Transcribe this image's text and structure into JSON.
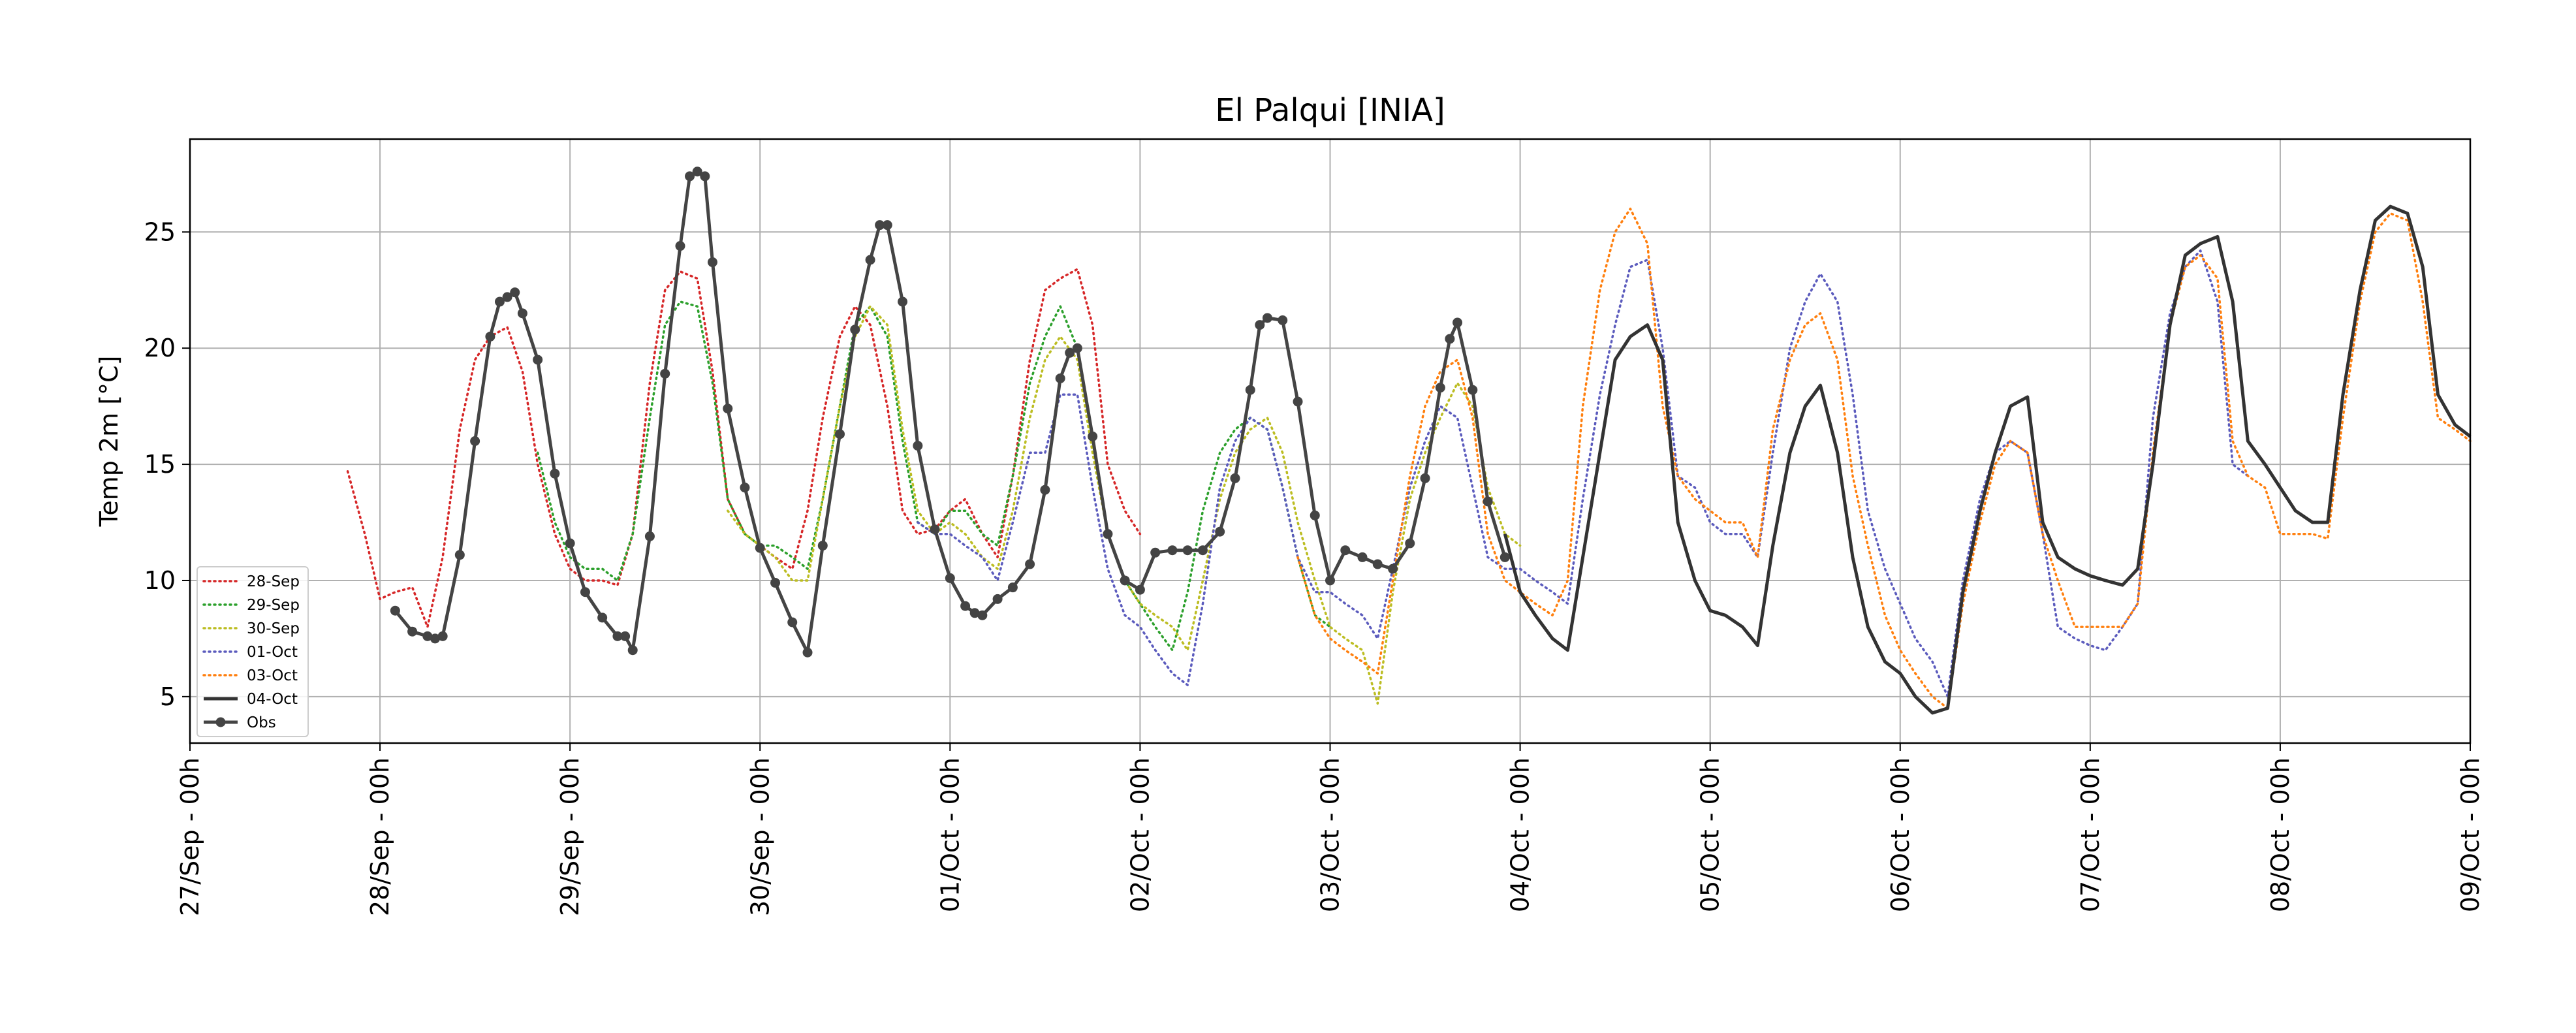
{
  "chart_data": {
    "type": "line",
    "title": "El Palqui [INIA]",
    "xlabel": "",
    "ylabel": "Temp 2m [°C]",
    "xlim": [
      0,
      12
    ],
    "ylim": [
      3,
      29
    ],
    "grid": true,
    "legend_placement": "lower-left",
    "x_unit": "days from 27/Sep 00h",
    "x_tick_labels": [
      "27/Sep - 00h",
      "28/Sep - 00h",
      "29/Sep - 00h",
      "30/Sep - 00h",
      "01/Oct - 00h",
      "02/Oct - 00h",
      "03/Oct - 00h",
      "04/Oct - 00h",
      "05/Oct - 00h",
      "06/Oct - 00h",
      "07/Oct - 00h",
      "08/Oct - 00h",
      "09/Oct - 00h"
    ],
    "y_ticks": [
      5,
      10,
      15,
      20,
      25
    ],
    "series": [
      {
        "name": "28-Sep",
        "style": "dotted",
        "color": "#d62728",
        "x": [
          0.83,
          0.92,
          1.0,
          1.08,
          1.17,
          1.25,
          1.33,
          1.42,
          1.5,
          1.58,
          1.67,
          1.75,
          1.83,
          1.92,
          2.0,
          2.08,
          2.17,
          2.25,
          2.33,
          2.42,
          2.5,
          2.58,
          2.67,
          2.75,
          2.83,
          2.92,
          3.0,
          3.08,
          3.17,
          3.25,
          3.33,
          3.42,
          3.5,
          3.58,
          3.67,
          3.75,
          3.83,
          3.92,
          4.0,
          4.08,
          4.17,
          4.25,
          4.33,
          4.42,
          4.5,
          4.58,
          4.67,
          4.75,
          4.83,
          4.92,
          5.0
        ],
        "y": [
          14.7,
          12.0,
          9.2,
          9.5,
          9.7,
          8.0,
          11.0,
          16.5,
          19.5,
          20.5,
          20.9,
          19.0,
          15.0,
          12.0,
          10.5,
          10.0,
          10.0,
          9.8,
          12.0,
          18.5,
          22.5,
          23.3,
          23.0,
          19.0,
          13.5,
          12.0,
          11.5,
          11.0,
          10.5,
          13.0,
          17.0,
          20.5,
          21.8,
          21.0,
          17.5,
          13.0,
          12.0,
          12.2,
          13.0,
          13.5,
          12.0,
          11.0,
          14.5,
          19.5,
          22.5,
          23.0,
          23.4,
          21.0,
          15.0,
          13.0,
          12.0
        ]
      },
      {
        "name": "29-Sep",
        "style": "dotted",
        "color": "#2ca02c",
        "x": [
          1.83,
          1.92,
          2.0,
          2.08,
          2.17,
          2.25,
          2.33,
          2.42,
          2.5,
          2.58,
          2.67,
          2.75,
          2.83,
          2.92,
          3.0,
          3.08,
          3.17,
          3.25,
          3.33,
          3.42,
          3.5,
          3.58,
          3.67,
          3.75,
          3.83,
          3.92,
          4.0,
          4.08,
          4.17,
          4.25,
          4.33,
          4.42,
          4.5,
          4.58,
          4.67,
          4.75,
          4.83,
          4.92,
          5.0,
          5.08,
          5.17,
          5.25,
          5.33,
          5.42,
          5.5,
          5.58,
          5.67,
          5.75,
          5.83,
          5.92,
          6.0
        ],
        "y": [
          15.5,
          12.5,
          11.0,
          10.5,
          10.5,
          10.0,
          12.0,
          17.0,
          21.0,
          22.0,
          21.8,
          18.5,
          13.5,
          12.0,
          11.5,
          11.5,
          11.0,
          10.5,
          13.5,
          17.5,
          21.0,
          21.8,
          20.5,
          16.0,
          12.5,
          12.0,
          13.0,
          13.0,
          12.0,
          11.5,
          14.5,
          18.5,
          20.5,
          21.8,
          20.0,
          16.0,
          12.0,
          10.0,
          9.0,
          8.0,
          7.0,
          9.5,
          13.0,
          15.5,
          16.5,
          17.0,
          16.5,
          14.0,
          11.0,
          8.5,
          8.0
        ]
      },
      {
        "name": "30-Sep",
        "style": "dotted",
        "color": "#bcbd22",
        "x": [
          2.83,
          2.92,
          3.0,
          3.08,
          3.17,
          3.25,
          3.33,
          3.42,
          3.5,
          3.58,
          3.67,
          3.75,
          3.83,
          3.92,
          4.0,
          4.08,
          4.17,
          4.25,
          4.33,
          4.42,
          4.5,
          4.58,
          4.67,
          4.75,
          4.83,
          4.92,
          5.0,
          5.08,
          5.17,
          5.25,
          5.33,
          5.42,
          5.5,
          5.58,
          5.67,
          5.75,
          5.83,
          5.92,
          6.0,
          6.08,
          6.17,
          6.25,
          6.33,
          6.42,
          6.5,
          6.58,
          6.67,
          6.75,
          6.83,
          6.92,
          7.0
        ],
        "y": [
          13.0,
          12.0,
          11.5,
          11.0,
          10.0,
          10.0,
          13.5,
          17.5,
          20.5,
          21.8,
          21.0,
          16.5,
          13.0,
          12.0,
          12.5,
          12.0,
          11.0,
          10.5,
          13.0,
          17.0,
          19.5,
          20.5,
          19.5,
          15.5,
          12.0,
          10.0,
          9.0,
          8.5,
          8.0,
          7.0,
          10.0,
          13.5,
          15.5,
          16.5,
          17.0,
          15.5,
          12.5,
          10.0,
          8.0,
          7.5,
          7.0,
          4.7,
          9.5,
          13.5,
          15.5,
          17.0,
          18.5,
          17.5,
          14.0,
          12.0,
          11.5
        ]
      },
      {
        "name": "01-Oct",
        "style": "dotted",
        "color": "#5b5bbd",
        "x": [
          3.83,
          3.92,
          4.0,
          4.08,
          4.17,
          4.25,
          4.33,
          4.42,
          4.5,
          4.58,
          4.67,
          4.75,
          4.83,
          4.92,
          5.0,
          5.08,
          5.17,
          5.25,
          5.33,
          5.42,
          5.5,
          5.58,
          5.67,
          5.75,
          5.83,
          5.92,
          6.0,
          6.08,
          6.17,
          6.25,
          6.33,
          6.42,
          6.5,
          6.58,
          6.67,
          6.75,
          6.83,
          6.92,
          7.0,
          7.08,
          7.17,
          7.25,
          7.33,
          7.42,
          7.5,
          7.58,
          7.67,
          7.75,
          7.83,
          7.92,
          8.0,
          8.08,
          8.17,
          8.25,
          8.33,
          8.42,
          8.5,
          8.58,
          8.67,
          8.75,
          8.83,
          8.92,
          9.0,
          9.08,
          9.17,
          9.25,
          9.33,
          9.42,
          9.5,
          9.58,
          9.67,
          9.75,
          9.83,
          9.92,
          10.0,
          10.08,
          10.17,
          10.25,
          10.33,
          10.42,
          10.5,
          10.58,
          10.67,
          10.75,
          10.83
        ],
        "y": [
          12.5,
          12.0,
          12.0,
          11.5,
          11.0,
          10.0,
          12.5,
          15.5,
          15.5,
          18.0,
          18.0,
          14.0,
          10.5,
          8.5,
          8.0,
          7.0,
          6.0,
          5.5,
          9.0,
          14.0,
          16.0,
          17.0,
          16.5,
          14.0,
          11.0,
          9.5,
          9.5,
          9.0,
          8.5,
          7.5,
          10.5,
          14.0,
          16.0,
          17.5,
          17.0,
          14.0,
          11.0,
          10.5,
          10.5,
          10.0,
          9.5,
          9.0,
          13.5,
          18.0,
          21.0,
          23.5,
          23.8,
          20.0,
          14.5,
          14.0,
          12.5,
          12.0,
          12.0,
          11.0,
          15.5,
          20.0,
          22.0,
          23.2,
          22.0,
          18.0,
          13.0,
          10.5,
          9.0,
          7.5,
          6.5,
          5.0,
          10.0,
          13.5,
          15.5,
          16.0,
          15.5,
          12.0,
          8.0,
          7.5,
          7.2,
          7.0,
          8.0,
          9.0,
          17.0,
          21.5,
          23.5,
          24.2,
          22.0,
          15.0,
          14.5
        ]
      },
      {
        "name": "03-Oct",
        "style": "dotted",
        "color": "#ff7f0e",
        "x": [
          5.83,
          5.92,
          6.0,
          6.08,
          6.17,
          6.25,
          6.33,
          6.42,
          6.5,
          6.58,
          6.67,
          6.75,
          6.83,
          6.92,
          7.0,
          7.08,
          7.17,
          7.25,
          7.33,
          7.42,
          7.5,
          7.58,
          7.67,
          7.75,
          7.83,
          7.92,
          8.0,
          8.08,
          8.17,
          8.25,
          8.33,
          8.42,
          8.5,
          8.58,
          8.67,
          8.75,
          8.83,
          8.92,
          9.0,
          9.08,
          9.17,
          9.25,
          9.33,
          9.42,
          9.5,
          9.58,
          9.67,
          9.75,
          9.83,
          9.92,
          10.0,
          10.08,
          10.17,
          10.25,
          10.33,
          10.42,
          10.5,
          10.58,
          10.67,
          10.75,
          10.83,
          10.92,
          11.0,
          11.08,
          11.17,
          11.25,
          11.33,
          11.42,
          11.5,
          11.58,
          11.67,
          11.75,
          11.83,
          11.92,
          12.0
        ],
        "y": [
          11.0,
          8.5,
          7.5,
          7.0,
          6.5,
          6.0,
          10.0,
          14.5,
          17.5,
          19.0,
          19.5,
          17.0,
          12.0,
          10.0,
          9.5,
          9.0,
          8.5,
          10.0,
          17.5,
          22.5,
          25.0,
          26.0,
          24.5,
          17.5,
          14.5,
          13.5,
          13.0,
          12.5,
          12.5,
          11.0,
          16.5,
          19.5,
          21.0,
          21.5,
          19.5,
          14.5,
          11.5,
          8.5,
          7.0,
          6.0,
          5.0,
          4.5,
          9.0,
          12.5,
          15.0,
          16.0,
          15.5,
          12.0,
          10.0,
          8.0,
          8.0,
          8.0,
          8.0,
          9.0,
          15.5,
          21.0,
          23.5,
          24.0,
          23.0,
          16.0,
          14.5,
          14.0,
          12.0,
          12.0,
          12.0,
          11.8,
          17.0,
          22.0,
          25.0,
          25.8,
          25.5,
          22.0,
          17.0,
          16.5,
          16.0
        ]
      },
      {
        "name": "04-Oct",
        "style": "solid",
        "color": "#333333",
        "x": [
          6.92,
          7.0,
          7.08,
          7.17,
          7.25,
          7.33,
          7.42,
          7.5,
          7.58,
          7.67,
          7.75,
          7.83,
          7.92,
          8.0,
          8.08,
          8.17,
          8.25,
          8.33,
          8.42,
          8.5,
          8.58,
          8.67,
          8.75,
          8.83,
          8.92,
          9.0,
          9.08,
          9.17,
          9.25,
          9.33,
          9.42,
          9.5,
          9.58,
          9.67,
          9.75,
          9.83,
          9.92,
          10.0,
          10.08,
          10.17,
          10.25,
          10.33,
          10.42,
          10.5,
          10.58,
          10.67,
          10.75,
          10.83,
          10.92,
          11.0,
          11.08,
          11.17,
          11.25,
          11.33,
          11.42,
          11.5,
          11.58,
          11.67,
          11.75,
          11.83,
          11.92,
          12.0
        ],
        "y": [
          12.0,
          9.5,
          8.5,
          7.5,
          7.0,
          11.0,
          15.5,
          19.5,
          20.5,
          21.0,
          19.5,
          12.5,
          10.0,
          8.7,
          8.5,
          8.0,
          7.2,
          11.5,
          15.5,
          17.5,
          18.4,
          15.5,
          11.0,
          8.0,
          6.5,
          6.0,
          5.0,
          4.3,
          4.5,
          9.5,
          13.0,
          15.5,
          17.5,
          17.9,
          12.5,
          11.0,
          10.5,
          10.2,
          10.0,
          9.8,
          10.5,
          15.0,
          21.0,
          24.0,
          24.5,
          24.8,
          22.0,
          16.0,
          15.0,
          14.0,
          13.0,
          12.5,
          12.5,
          18.0,
          22.5,
          25.5,
          26.1,
          25.8,
          23.5,
          18.0,
          16.7,
          16.2
        ]
      },
      {
        "name": "Obs",
        "style": "marker",
        "color": "#444444",
        "x": [
          1.08,
          1.17,
          1.25,
          1.29,
          1.33,
          1.42,
          1.5,
          1.58,
          1.63,
          1.67,
          1.71,
          1.75,
          1.83,
          1.92,
          2.0,
          2.08,
          2.17,
          2.25,
          2.29,
          2.33,
          2.42,
          2.5,
          2.58,
          2.63,
          2.67,
          2.71,
          2.75,
          2.83,
          2.92,
          3.0,
          3.08,
          3.17,
          3.25,
          3.33,
          3.42,
          3.5,
          3.58,
          3.63,
          3.67,
          3.75,
          3.83,
          3.92,
          4.0,
          4.08,
          4.13,
          4.17,
          4.25,
          4.33,
          4.42,
          4.5,
          4.58,
          4.63,
          4.67,
          4.75,
          4.83,
          4.92,
          5.0,
          5.08,
          5.17,
          5.25,
          5.33,
          5.42,
          5.5,
          5.58,
          5.63,
          5.67,
          5.75,
          5.83,
          5.92,
          6.0,
          6.08,
          6.17,
          6.25,
          6.33,
          6.42,
          6.5,
          6.58,
          6.63,
          6.67,
          6.75,
          6.83,
          6.92
        ],
        "y": [
          8.7,
          7.8,
          7.6,
          7.5,
          7.6,
          11.1,
          16.0,
          20.5,
          22.0,
          22.2,
          22.4,
          21.5,
          19.5,
          14.6,
          11.6,
          9.5,
          8.4,
          7.6,
          7.6,
          7.0,
          11.9,
          18.9,
          24.4,
          27.4,
          27.6,
          27.4,
          23.7,
          17.4,
          14.0,
          11.4,
          9.9,
          8.2,
          6.9,
          11.5,
          16.3,
          20.8,
          23.8,
          25.3,
          25.3,
          22.0,
          15.8,
          12.2,
          10.1,
          8.9,
          8.6,
          8.5,
          9.2,
          9.7,
          10.7,
          13.9,
          18.7,
          19.8,
          20.0,
          16.2,
          12.0,
          10.0,
          9.6,
          11.2,
          11.3,
          11.3,
          11.3,
          12.1,
          14.4,
          18.2,
          21.0,
          21.3,
          21.2,
          17.7,
          12.8,
          10.0,
          11.3,
          11.0,
          10.7,
          10.5,
          11.6,
          14.4,
          18.3,
          20.4,
          21.1,
          18.2,
          13.4,
          11.0
        ]
      }
    ]
  }
}
